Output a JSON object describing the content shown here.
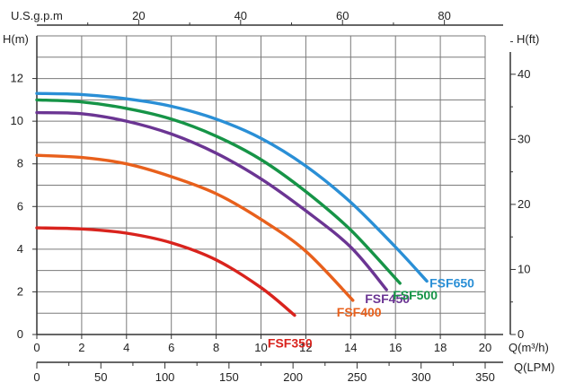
{
  "chart_data": {
    "type": "line",
    "title": "",
    "axes": {
      "x_bottom": {
        "label": "Q(m³/h)",
        "min": 0,
        "max": 20,
        "ticks": [
          0,
          2,
          4,
          6,
          8,
          10,
          12,
          14,
          16,
          18,
          20
        ]
      },
      "x_bottom_alt": {
        "label": "Q(LPM)",
        "min": 0,
        "max": 350,
        "ticks": [
          0,
          50,
          100,
          150,
          200,
          250,
          300,
          350
        ]
      },
      "x_top": {
        "label": "U.S.g.p.m",
        "min": 0,
        "max": 88,
        "ticks": [
          20,
          40,
          60,
          80
        ]
      },
      "y_left": {
        "label": "H(m)",
        "min": 0,
        "max": 14,
        "ticks": [
          0,
          2,
          4,
          6,
          8,
          10,
          12
        ]
      },
      "y_right": {
        "label": "H(ft)",
        "min": 0,
        "max": 45.9,
        "ticks": [
          0,
          10,
          20,
          30,
          40
        ]
      }
    },
    "grid": true,
    "series": [
      {
        "name": "FSF350",
        "color": "#d9231d",
        "x": [
          0,
          2,
          4,
          6,
          8,
          10,
          11.5
        ],
        "y": [
          5.0,
          4.95,
          4.75,
          4.3,
          3.5,
          2.2,
          0.9
        ]
      },
      {
        "name": "FSF400",
        "color": "#e8601c",
        "x": [
          0,
          2,
          4,
          6,
          8,
          10,
          12,
          14.1
        ],
        "y": [
          8.4,
          8.3,
          8.0,
          7.4,
          6.6,
          5.4,
          3.9,
          1.6
        ]
      },
      {
        "name": "FSF450",
        "color": "#6b3593",
        "x": [
          0,
          2,
          4,
          6,
          8,
          10,
          12,
          14,
          15.6
        ],
        "y": [
          10.4,
          10.35,
          10.0,
          9.4,
          8.5,
          7.3,
          5.8,
          4.1,
          2.1
        ]
      },
      {
        "name": "FSF500",
        "color": "#169447",
        "x": [
          0,
          2,
          4,
          6,
          8,
          10,
          12,
          14,
          16.2
        ],
        "y": [
          11.0,
          10.9,
          10.6,
          10.1,
          9.3,
          8.2,
          6.7,
          4.9,
          2.4
        ]
      },
      {
        "name": "FSF650",
        "color": "#2a8fd6",
        "x": [
          0,
          2,
          4,
          6,
          8,
          10,
          12,
          14,
          16,
          17.4
        ],
        "y": [
          11.3,
          11.25,
          11.05,
          10.7,
          10.1,
          9.2,
          7.9,
          6.2,
          4.1,
          2.5
        ]
      }
    ]
  }
}
